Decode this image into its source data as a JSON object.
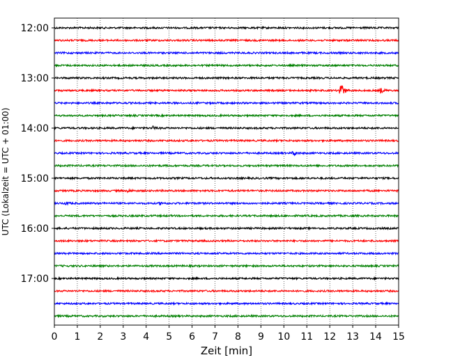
{
  "chart_data": {
    "type": "line",
    "title": "",
    "xlabel": "Zeit  [min]",
    "ylabel": "UTC (Lokalzeit = UTC + 01:00)",
    "xlim": [
      0,
      15
    ],
    "x_ticks": [
      0,
      1,
      2,
      3,
      4,
      5,
      6,
      7,
      8,
      9,
      10,
      11,
      12,
      13,
      14,
      15
    ],
    "y_ticks": [
      {
        "label": "12:00",
        "minutes": 0
      },
      {
        "label": "13:00",
        "minutes": 60
      },
      {
        "label": "14:00",
        "minutes": 120
      },
      {
        "label": "15:00",
        "minutes": 180
      },
      {
        "label": "16:00",
        "minutes": 240
      },
      {
        "label": "17:00",
        "minutes": 300
      }
    ],
    "x_grid": true,
    "trace_interval_min": 15,
    "trace_colors": [
      "#000000",
      "#ff0000",
      "#0000ff",
      "#008000"
    ],
    "traces": [
      {
        "start": "12:00",
        "events": []
      },
      {
        "start": "12:15",
        "events": []
      },
      {
        "start": "12:30",
        "events": []
      },
      {
        "start": "12:45",
        "events": []
      },
      {
        "start": "13:00",
        "events": []
      },
      {
        "start": "13:15",
        "events": [
          {
            "x": 12.45,
            "amp": 16
          },
          {
            "x": 14.2,
            "amp": 4
          }
        ]
      },
      {
        "start": "13:30",
        "events": []
      },
      {
        "start": "13:45",
        "events": []
      },
      {
        "start": "14:00",
        "events": [
          {
            "x": 4.3,
            "amp": 2
          }
        ]
      },
      {
        "start": "14:15",
        "events": []
      },
      {
        "start": "14:30",
        "events": [
          {
            "x": 10.4,
            "amp": 4
          }
        ]
      },
      {
        "start": "14:45",
        "events": []
      },
      {
        "start": "15:00",
        "events": []
      },
      {
        "start": "15:15",
        "events": [
          {
            "x": 3.2,
            "amp": 2
          }
        ]
      },
      {
        "start": "15:30",
        "events": [
          {
            "x": 0.5,
            "amp": 2
          },
          {
            "x": 4.6,
            "amp": 2
          }
        ]
      },
      {
        "start": "15:45",
        "events": []
      },
      {
        "start": "16:00",
        "events": []
      },
      {
        "start": "16:15",
        "events": []
      },
      {
        "start": "16:30",
        "events": []
      },
      {
        "start": "16:45",
        "events": []
      },
      {
        "start": "17:00",
        "events": []
      },
      {
        "start": "17:15",
        "events": []
      },
      {
        "start": "17:30",
        "events": []
      },
      {
        "start": "17:45",
        "events": []
      }
    ]
  }
}
